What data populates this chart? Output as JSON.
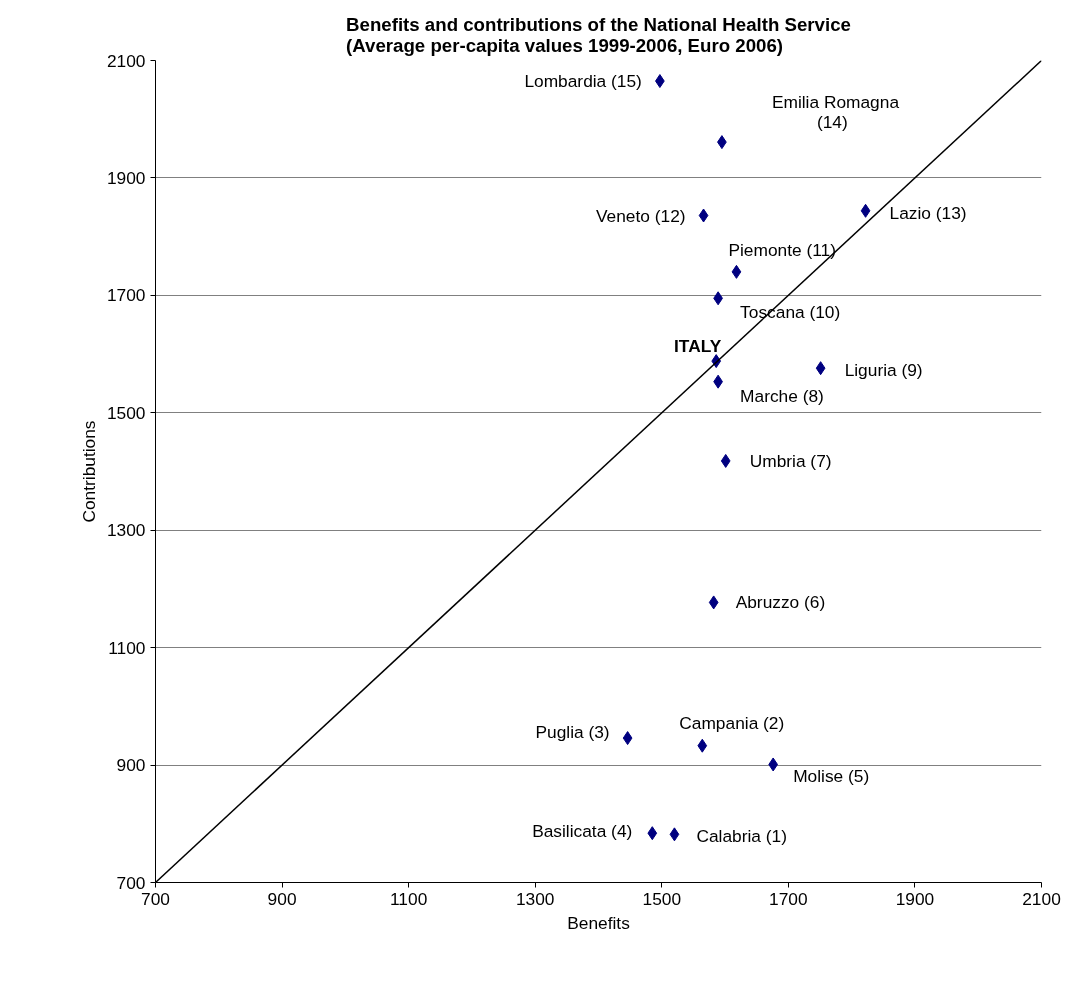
{
  "chart_data": {
    "type": "scatter",
    "title": "Benefits and contributions of the National Health Service\n(Average per-capita values 1999-2006, Euro 2006)",
    "xlabel": "Benefits",
    "ylabel": "Contributions",
    "xlim": [
      700,
      2100
    ],
    "xticks": [
      700,
      900,
      1100,
      1300,
      1500,
      1700,
      1900,
      2100
    ],
    "ylim": [
      700,
      2100
    ],
    "yticks": [
      700,
      900,
      1100,
      1300,
      1500,
      1700,
      1900,
      2100
    ],
    "grid": "y",
    "series": [
      {
        "marker": "diamond",
        "color": "#000080",
        "x": [
          1497,
          1595,
          1566,
          1822,
          1618,
          1589,
          1586,
          1589,
          1751,
          1601,
          1582,
          1446,
          1564,
          1676,
          1485,
          1520
        ],
        "values": [
          2065,
          1961,
          1836,
          1844,
          1740,
          1695,
          1588,
          1553,
          1576,
          1418,
          1177,
          946,
          933,
          901,
          784,
          782
        ]
      },
      {
        "type": "line",
        "color": "#000000",
        "x": [
          700,
          2100
        ],
        "values": [
          700,
          2100
        ]
      }
    ],
    "annotations": [
      {
        "text": "Lombardia (15)",
        "x": 1497,
        "y": 2065
      },
      {
        "text": "Emilia Romagna\n(14)",
        "x": 1595,
        "y": 1961
      },
      {
        "text": "Veneto (12)",
        "x": 1566,
        "y": 1836
      },
      {
        "text": "Lazio (13)",
        "x": 1822,
        "y": 1844
      },
      {
        "text": "Piemonte (11)",
        "x": 1618,
        "y": 1740
      },
      {
        "text": "Toscana (10)",
        "x": 1589,
        "y": 1695
      },
      {
        "text": "ITALY",
        "x": 1586,
        "y": 1588
      },
      {
        "text": "Marche (8)",
        "x": 1589,
        "y": 1553
      },
      {
        "text": "Liguria (9)",
        "x": 1751,
        "y": 1576
      },
      {
        "text": "Umbria (7)",
        "x": 1601,
        "y": 1418
      },
      {
        "text": "Abruzzo (6)",
        "x": 1582,
        "y": 1177
      },
      {
        "text": "Puglia (3)",
        "x": 1446,
        "y": 946
      },
      {
        "text": "Campania (2)",
        "x": 1564,
        "y": 933
      },
      {
        "text": "Molise (5)",
        "x": 1676,
        "y": 901
      },
      {
        "text": "Basilicata (4)",
        "x": 1485,
        "y": 784
      },
      {
        "text": "Calabria (1)",
        "x": 1520,
        "y": 782
      }
    ]
  }
}
